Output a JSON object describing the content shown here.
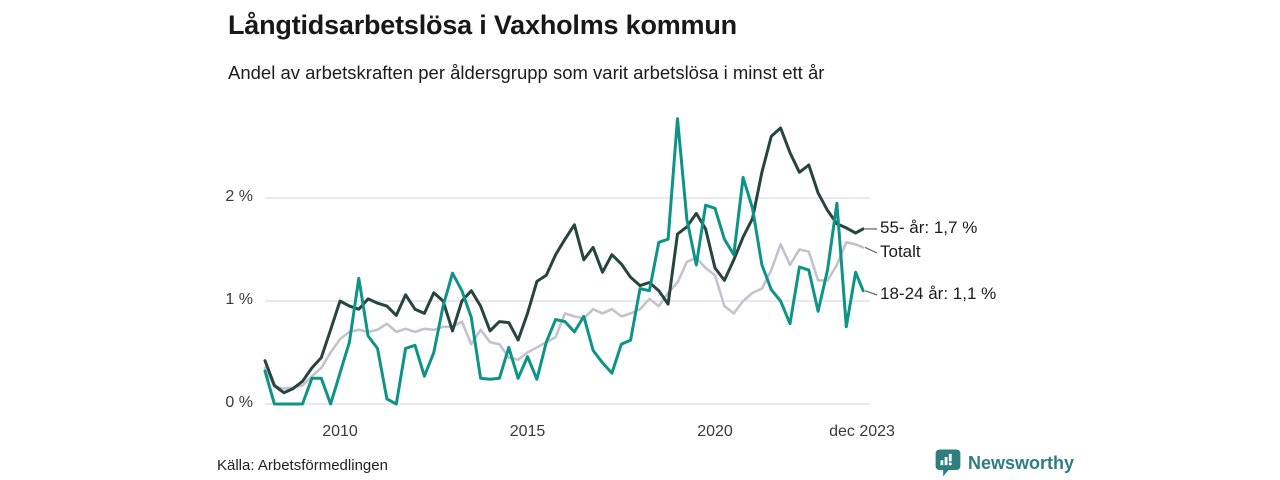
{
  "header": {
    "title": "Långtidsarbetslösa i Vaxholms kommun",
    "subtitle": "Andel av arbetskraften per åldersgrupp som varit arbetslösa i minst ett år"
  },
  "footer": {
    "source": "Källa: Arbetsförmedlingen",
    "brand": "Newsworthy"
  },
  "colors": {
    "series_55": "#26463d",
    "series_total": "#c5c2cf",
    "series_1824": "#0e9486",
    "gridline": "#e3e1e8",
    "axis_text": "#3a3a3a",
    "connector": "#666666",
    "brand_teal": "#2e7e81"
  },
  "chart_data": {
    "type": "line",
    "title": "Långtidsarbetslösa i Vaxholms kommun",
    "subtitle": "Andel av arbetskraften per åldersgrupp som varit arbetslösa i minst ett år",
    "source": "Källa: Arbetsförmedlingen",
    "unit": "%",
    "grid": "horizontal",
    "legend_position": "right-end-labels",
    "ylim": [
      0,
      2.9
    ],
    "y_ticks": [
      {
        "label": "0 %",
        "value": 0
      },
      {
        "label": "1 %",
        "value": 1
      },
      {
        "label": "2 %",
        "value": 2
      }
    ],
    "x_ticks": [
      {
        "label": "2010",
        "year": 2010
      },
      {
        "label": "2015",
        "year": 2015
      },
      {
        "label": "2020",
        "year": 2020
      },
      {
        "label": "dec 2023",
        "year": 2023.92
      }
    ],
    "x": [
      2008.0,
      2008.25,
      2008.5,
      2008.75,
      2009.0,
      2009.25,
      2009.5,
      2009.75,
      2010.0,
      2010.25,
      2010.5,
      2010.75,
      2011.0,
      2011.25,
      2011.5,
      2011.75,
      2012.0,
      2012.25,
      2012.5,
      2012.75,
      2013.0,
      2013.25,
      2013.5,
      2013.75,
      2014.0,
      2014.25,
      2014.5,
      2014.75,
      2015.0,
      2015.25,
      2015.5,
      2015.75,
      2016.0,
      2016.25,
      2016.5,
      2016.75,
      2017.0,
      2017.25,
      2017.5,
      2017.75,
      2018.0,
      2018.25,
      2018.5,
      2018.75,
      2019.0,
      2019.25,
      2019.5,
      2019.75,
      2020.0,
      2020.25,
      2020.5,
      2020.75,
      2021.0,
      2021.25,
      2021.5,
      2021.75,
      2022.0,
      2022.25,
      2022.5,
      2022.75,
      2023.0,
      2023.25,
      2023.5,
      2023.75,
      2023.95
    ],
    "series": [
      {
        "name": "55- år",
        "end_label": "55- år: 1,7 %",
        "end_value": 1.7,
        "color": "#26463d",
        "values": [
          0.42,
          0.18,
          0.11,
          0.15,
          0.22,
          0.35,
          0.45,
          0.72,
          1.0,
          0.95,
          0.92,
          1.02,
          0.98,
          0.95,
          0.86,
          1.06,
          0.92,
          0.88,
          1.08,
          1.0,
          0.71,
          1.0,
          1.1,
          0.95,
          0.71,
          0.8,
          0.79,
          0.62,
          0.88,
          1.19,
          1.25,
          1.45,
          1.6,
          1.74,
          1.4,
          1.52,
          1.28,
          1.45,
          1.36,
          1.23,
          1.15,
          1.18,
          1.1,
          0.97,
          1.65,
          1.72,
          1.85,
          1.7,
          1.32,
          1.2,
          1.4,
          1.62,
          1.8,
          2.25,
          2.6,
          2.68,
          2.44,
          2.25,
          2.32,
          2.05,
          1.88,
          1.75,
          1.71,
          1.66,
          1.7
        ]
      },
      {
        "name": "Totalt",
        "end_label": "Totalt",
        "end_value": 1.52,
        "color": "#c5c2cf",
        "values": [
          0.35,
          0.17,
          0.15,
          0.16,
          0.18,
          0.27,
          0.35,
          0.5,
          0.63,
          0.7,
          0.72,
          0.7,
          0.72,
          0.78,
          0.7,
          0.73,
          0.7,
          0.73,
          0.72,
          0.75,
          0.75,
          0.8,
          0.58,
          0.72,
          0.6,
          0.58,
          0.45,
          0.43,
          0.5,
          0.55,
          0.6,
          0.65,
          0.88,
          0.85,
          0.83,
          0.92,
          0.88,
          0.92,
          0.85,
          0.88,
          0.92,
          1.02,
          0.95,
          1.08,
          1.18,
          1.38,
          1.42,
          1.32,
          1.25,
          0.95,
          0.88,
          1.0,
          1.08,
          1.12,
          1.3,
          1.55,
          1.35,
          1.5,
          1.48,
          1.2,
          1.2,
          1.35,
          1.57,
          1.55,
          1.52
        ]
      },
      {
        "name": "18-24 år",
        "end_label": "18-24 år: 1,1 %",
        "end_value": 1.1,
        "color": "#0e9486",
        "values": [
          0.32,
          0.0,
          0.0,
          0.0,
          0.0,
          0.25,
          0.25,
          0.0,
          0.3,
          0.6,
          1.22,
          0.66,
          0.54,
          0.05,
          0.0,
          0.54,
          0.57,
          0.27,
          0.5,
          0.95,
          1.27,
          1.1,
          0.84,
          0.25,
          0.24,
          0.25,
          0.55,
          0.25,
          0.46,
          0.24,
          0.6,
          0.82,
          0.8,
          0.7,
          0.85,
          0.52,
          0.4,
          0.3,
          0.58,
          0.62,
          1.12,
          1.1,
          1.57,
          1.6,
          2.77,
          1.79,
          1.35,
          1.93,
          1.9,
          1.6,
          1.45,
          2.2,
          1.9,
          1.35,
          1.11,
          1.0,
          0.78,
          1.33,
          1.3,
          0.9,
          1.3,
          1.95,
          0.75,
          1.28,
          1.1
        ]
      }
    ]
  }
}
